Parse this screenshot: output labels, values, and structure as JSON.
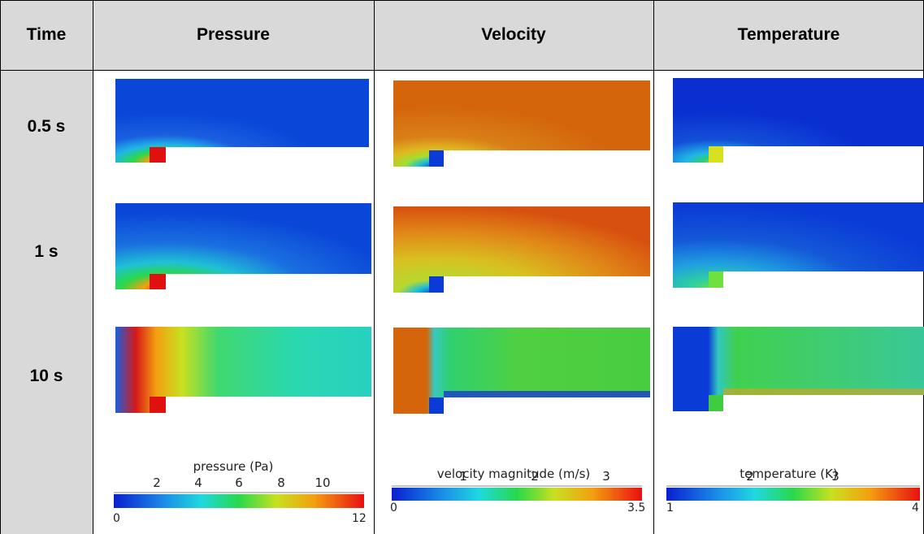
{
  "headers": {
    "time": "Time",
    "pressure": "Pressure",
    "velocity": "Velocity",
    "temperature": "Temperature"
  },
  "times": [
    "0.5 s",
    "1 s",
    "10 s"
  ],
  "legends": {
    "pressure": {
      "title": "pressure (Pa)",
      "ticks": [
        "2",
        "4",
        "6",
        "8",
        "10"
      ],
      "min": "0",
      "max": "12"
    },
    "velocity": {
      "title": "velocity magnitude (m/s)",
      "ticks": [
        "1",
        "2",
        "3"
      ],
      "min": "0",
      "max": "3.5"
    },
    "temperature": {
      "title": "temperature (K)",
      "ticks": [
        "2",
        "3"
      ],
      "min": "1",
      "max": "4"
    }
  },
  "colors": {
    "header_bg": "#d9d9d9",
    "low": "#0a3bd6",
    "high": "#e81010",
    "mid": "#28d94a",
    "orange": "#d4650a"
  }
}
